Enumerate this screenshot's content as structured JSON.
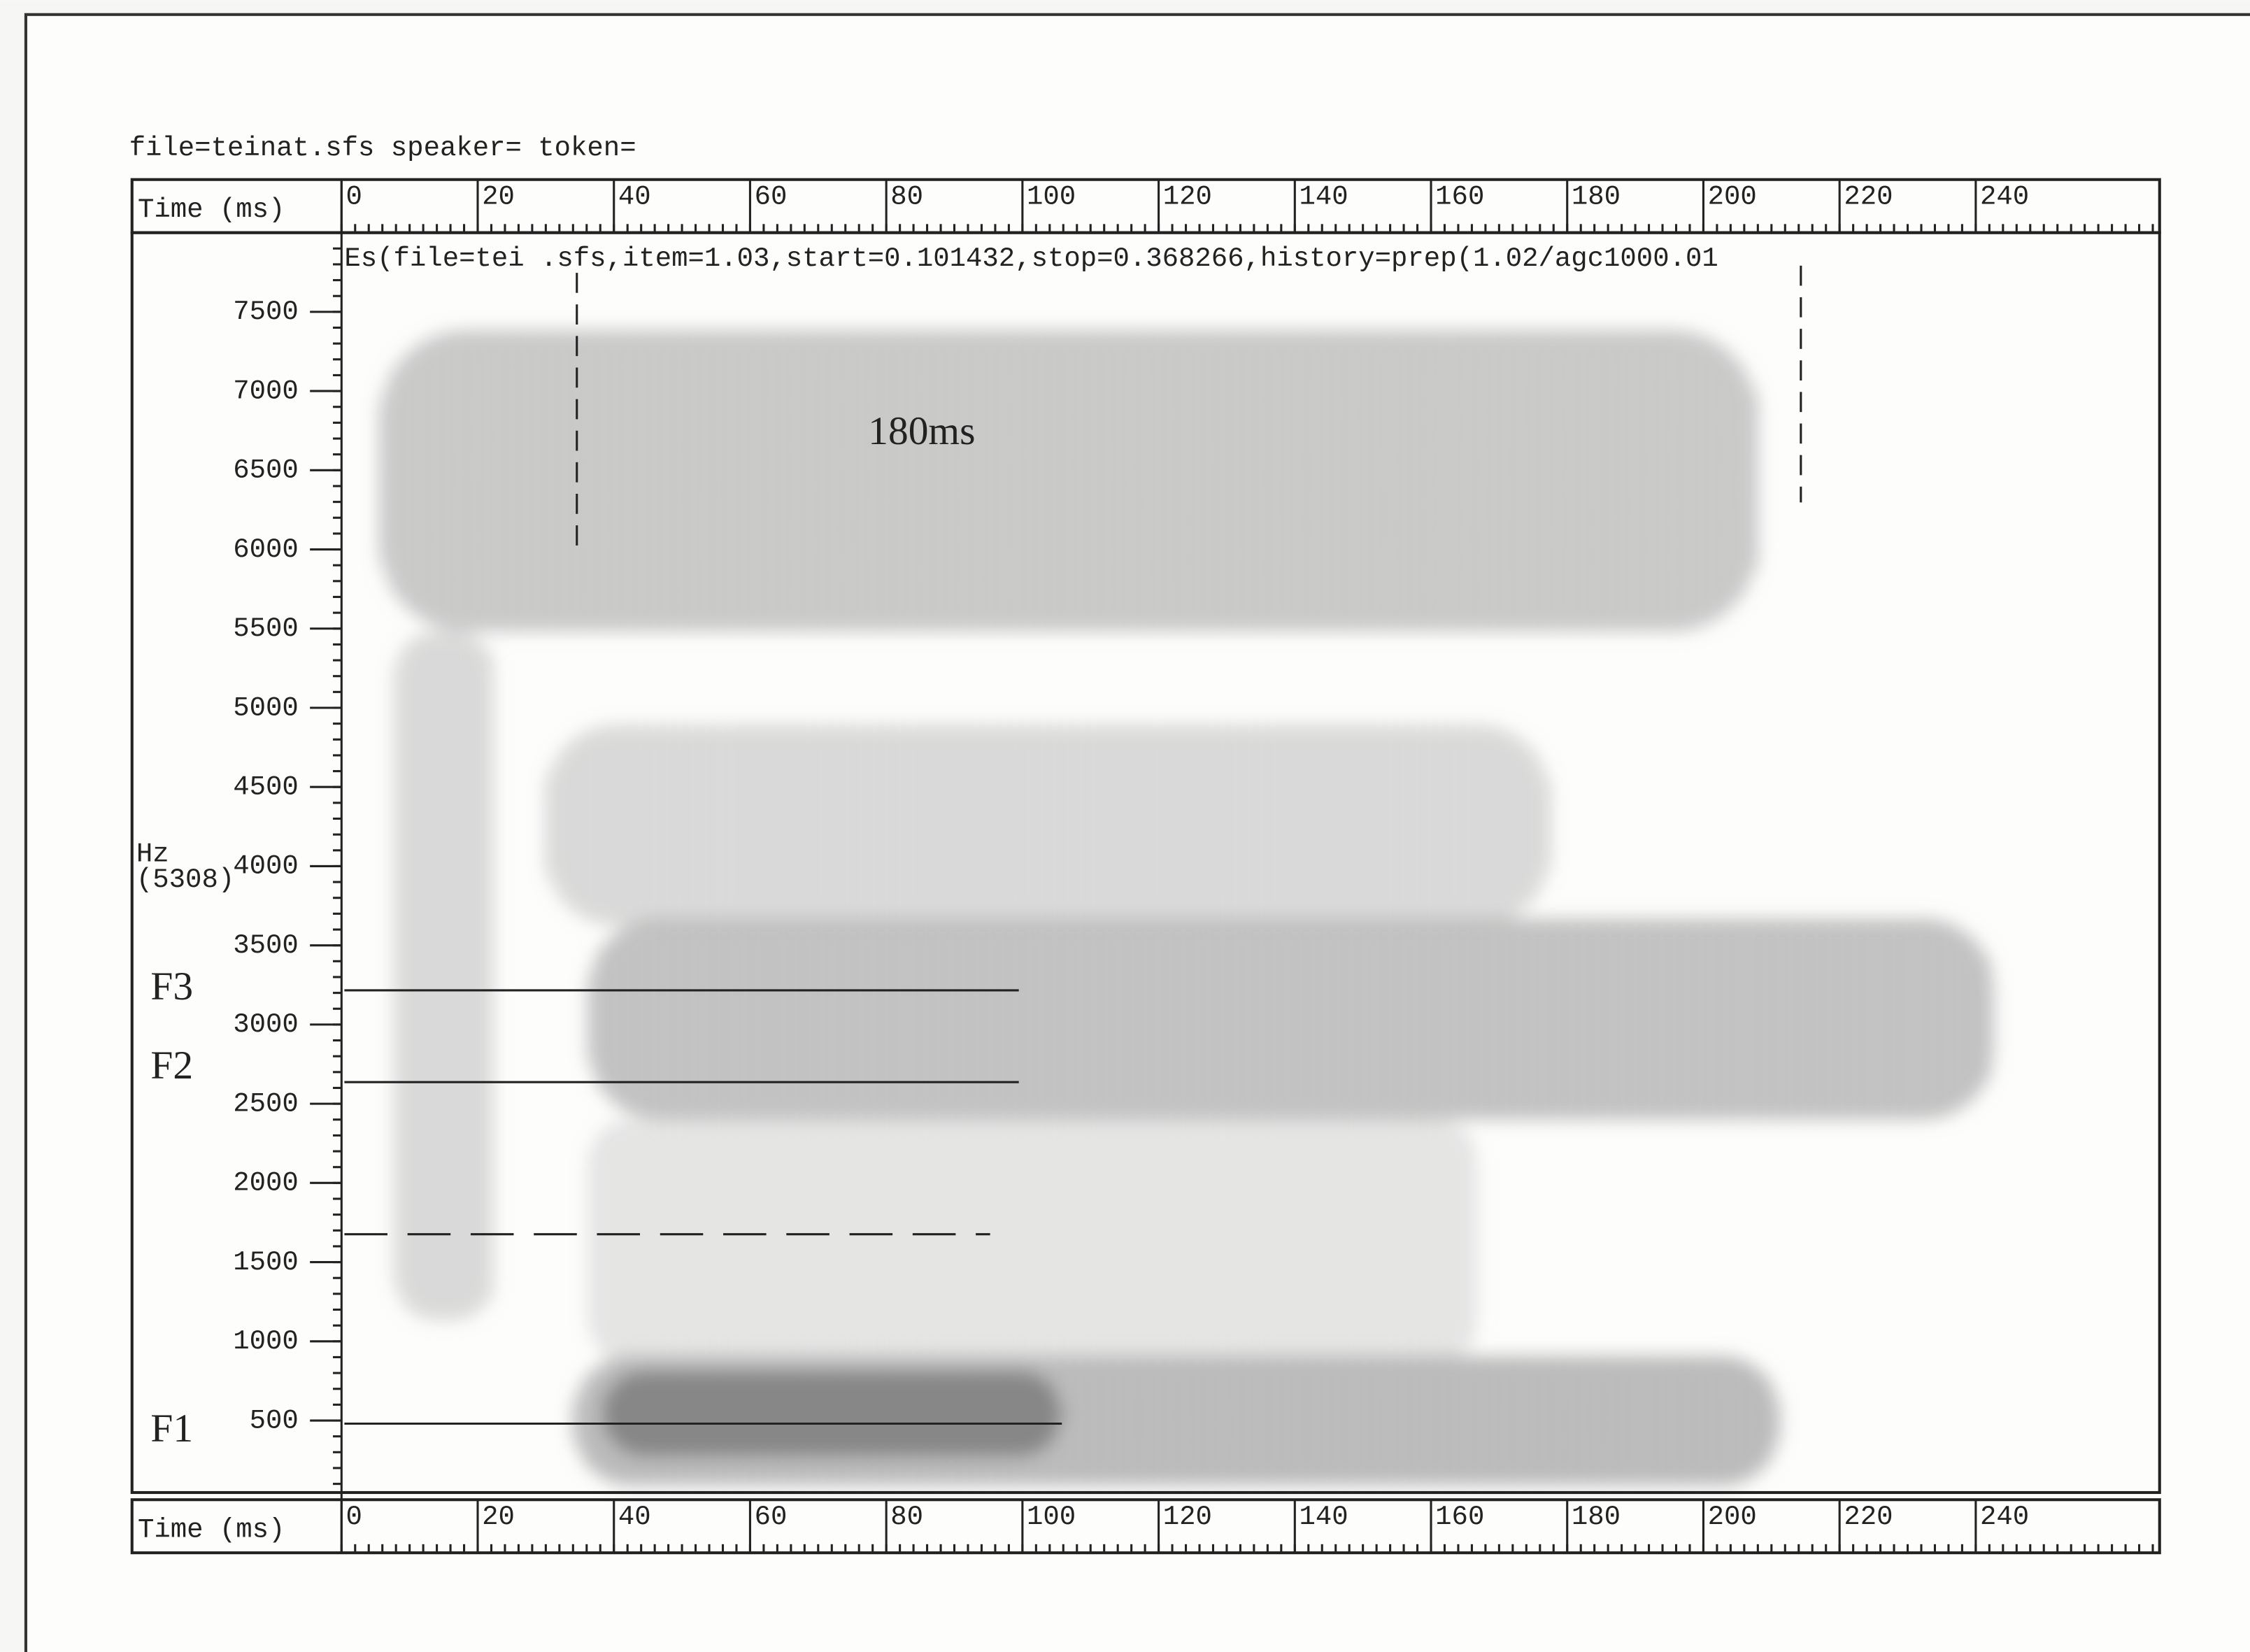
{
  "header": "file=teinat.sfs speaker= token=",
  "chart_data": {
    "type": "spectrogram",
    "title": "Es(file=tei .sfs,item=1.03,start=0.101432,stop=0.368266,history=prep(1.02/agc1000.01",
    "x_label": "Time (ms)",
    "y_label": "Hz",
    "y_label_note": "(5308)",
    "xlim": [
      0,
      267
    ],
    "xticks": [
      0,
      20,
      40,
      60,
      80,
      100,
      120,
      140,
      160,
      180,
      200,
      220,
      240
    ],
    "ylim": [
      0,
      8000
    ],
    "yticks": [
      500,
      1000,
      1500,
      2000,
      2500,
      3000,
      3500,
      4000,
      4500,
      5000,
      5500,
      6000,
      6500,
      7000,
      7500
    ],
    "annotations": [
      "180ms",
      "F3",
      "F2",
      "F1"
    ]
  }
}
